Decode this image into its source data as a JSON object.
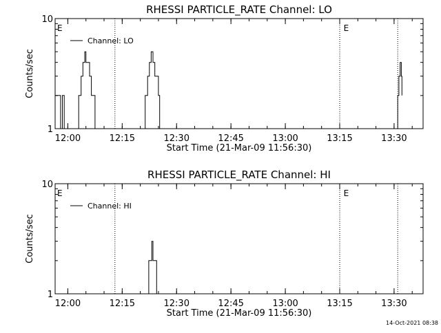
{
  "timestamp": "14-Oct-2021 08:38",
  "chart_data": [
    {
      "type": "line",
      "title": "RHESSI PARTICLE_RATE Channel: LO",
      "xlabel": "Start Time (21-Mar-09 11:56:30)",
      "ylabel": "Counts/sec",
      "yscale": "log",
      "ylim": [
        1,
        10
      ],
      "xlim": [
        "11:56:30",
        "13:38:00"
      ],
      "xticks": [
        "12:00",
        "12:15",
        "12:30",
        "12:45",
        "13:00",
        "13:15",
        "13:30"
      ],
      "yticks": [
        "1",
        "10"
      ],
      "legend": "top-left",
      "annotations": [
        {
          "text": "E",
          "time": "11:56:30"
        },
        {
          "text": "E",
          "time": "13:15:30"
        }
      ],
      "vlines": [
        "12:13:00",
        "13:15:00",
        "13:31:00"
      ],
      "series": [
        {
          "name": "Channel: LO",
          "x": [
            "11:56:30",
            "11:57:30",
            "11:58:00",
            "11:58:10",
            "11:58:30",
            "11:58:50",
            "11:59:00",
            "11:59:30",
            "12:02:20",
            "12:03:00",
            "12:03:40",
            "12:04:10",
            "12:04:40",
            "12:05:00",
            "12:05:30",
            "12:06:00",
            "12:06:30",
            "12:07:00",
            "12:07:30",
            "12:08:00",
            "12:20:40",
            "12:21:20",
            "12:22:00",
            "12:22:30",
            "12:23:00",
            "12:23:30",
            "12:24:00",
            "12:24:30",
            "12:25:00",
            "12:25:20",
            "12:25:40",
            "13:30:00",
            "13:30:30",
            "13:31:00",
            "13:31:20",
            "13:31:40",
            "13:32:00",
            "13:32:10"
          ],
          "y": [
            2,
            2,
            1,
            1,
            2,
            2,
            1,
            1,
            1,
            2,
            3,
            4,
            5,
            4,
            4,
            3,
            2,
            2,
            1,
            1,
            1,
            2,
            3,
            4,
            5,
            4,
            3,
            3,
            2,
            1,
            1,
            1,
            1,
            2,
            3,
            4,
            3,
            2
          ]
        }
      ]
    },
    {
      "type": "line",
      "title": "RHESSI PARTICLE_RATE Channel: HI",
      "xlabel": "Start Time (21-Mar-09 11:56:30)",
      "ylabel": "Counts/sec",
      "yscale": "log",
      "ylim": [
        1,
        10
      ],
      "xlim": [
        "11:56:30",
        "13:38:00"
      ],
      "xticks": [
        "12:00",
        "12:15",
        "12:30",
        "12:45",
        "13:00",
        "13:15",
        "13:30"
      ],
      "yticks": [
        "1",
        "10"
      ],
      "legend": "top-left",
      "annotations": [
        {
          "text": "E",
          "time": "11:56:30"
        },
        {
          "text": "E",
          "time": "13:15:30"
        }
      ],
      "vlines": [
        "12:13:00",
        "13:15:00",
        "13:31:00"
      ],
      "series": [
        {
          "name": "Channel: HI",
          "x": [
            "12:21:50",
            "12:22:20",
            "12:22:50",
            "12:23:10",
            "12:23:30",
            "12:24:10",
            "12:24:30",
            "12:24:50"
          ],
          "y": [
            1,
            2,
            2,
            3,
            2,
            2,
            1,
            1
          ]
        }
      ]
    }
  ]
}
